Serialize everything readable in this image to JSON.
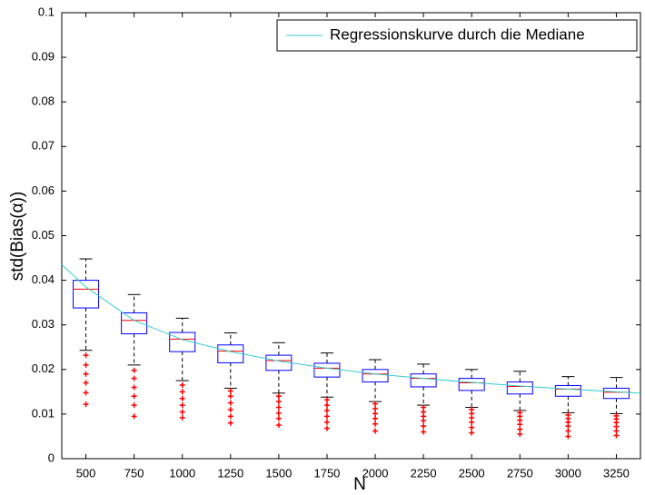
{
  "chart_data": {
    "type": "box",
    "xlabel": "N",
    "ylabel": "std(Bias(α))",
    "xlim": [
      375,
      3375
    ],
    "xticks": [
      500,
      750,
      1000,
      1250,
      1500,
      1750,
      2000,
      2250,
      2500,
      2750,
      3000,
      3250
    ],
    "ylim": [
      0,
      0.1
    ],
    "yticks": [
      0,
      0.01,
      0.02,
      0.03,
      0.04,
      0.05,
      0.06,
      0.07,
      0.08,
      0.09,
      0.1
    ],
    "box_color": "#0000ff",
    "median_color": "#ff0000",
    "outlier_color": "#ff0000",
    "whisker_color": "#000000",
    "legend": "upper right",
    "boxes": [
      {
        "x": 500,
        "whisker_low": 0.0243,
        "q1": 0.0338,
        "median": 0.038,
        "q3": 0.04,
        "whisker_high": 0.0448,
        "outliers": [
          0.0232,
          0.021,
          0.019,
          0.017,
          0.0148,
          0.0122
        ]
      },
      {
        "x": 750,
        "whisker_low": 0.021,
        "q1": 0.028,
        "median": 0.031,
        "q3": 0.0327,
        "whisker_high": 0.0368,
        "outliers": [
          0.0198,
          0.018,
          0.016,
          0.014,
          0.012,
          0.0095
        ]
      },
      {
        "x": 1000,
        "whisker_low": 0.0175,
        "q1": 0.024,
        "median": 0.0268,
        "q3": 0.0283,
        "whisker_high": 0.0315,
        "outliers": [
          0.0165,
          0.015,
          0.0135,
          0.012,
          0.0105,
          0.0092
        ]
      },
      {
        "x": 1250,
        "whisker_low": 0.0158,
        "q1": 0.0215,
        "median": 0.0241,
        "q3": 0.0255,
        "whisker_high": 0.0282,
        "outliers": [
          0.0152,
          0.014,
          0.0125,
          0.011,
          0.0095,
          0.008
        ]
      },
      {
        "x": 1500,
        "whisker_low": 0.0147,
        "q1": 0.0198,
        "median": 0.022,
        "q3": 0.0232,
        "whisker_high": 0.026,
        "outliers": [
          0.014,
          0.0128,
          0.0115,
          0.0102,
          0.009,
          0.0075
        ]
      },
      {
        "x": 1750,
        "whisker_low": 0.0138,
        "q1": 0.0183,
        "median": 0.0203,
        "q3": 0.0214,
        "whisker_high": 0.0237,
        "outliers": [
          0.0132,
          0.012,
          0.0108,
          0.0095,
          0.0082,
          0.0068
        ]
      },
      {
        "x": 2000,
        "whisker_low": 0.0128,
        "q1": 0.0172,
        "median": 0.019,
        "q3": 0.02,
        "whisker_high": 0.0222,
        "outliers": [
          0.0123,
          0.0112,
          0.0101,
          0.009,
          0.0078,
          0.0062
        ]
      },
      {
        "x": 2250,
        "whisker_low": 0.012,
        "q1": 0.0161,
        "median": 0.018,
        "q3": 0.019,
        "whisker_high": 0.0212,
        "outliers": [
          0.0115,
          0.0105,
          0.0095,
          0.0085,
          0.0073,
          0.006
        ]
      },
      {
        "x": 2500,
        "whisker_low": 0.0115,
        "q1": 0.0153,
        "median": 0.017,
        "q3": 0.018,
        "whisker_high": 0.02,
        "outliers": [
          0.011,
          0.0101,
          0.0092,
          0.0082,
          0.007,
          0.0058
        ]
      },
      {
        "x": 2750,
        "whisker_low": 0.0108,
        "q1": 0.0145,
        "median": 0.0162,
        "q3": 0.0172,
        "whisker_high": 0.0196,
        "outliers": [
          0.0103,
          0.0095,
          0.0086,
          0.0077,
          0.0066,
          0.0055
        ]
      },
      {
        "x": 3000,
        "whisker_low": 0.0103,
        "q1": 0.014,
        "median": 0.0156,
        "q3": 0.0164,
        "whisker_high": 0.0184,
        "outliers": [
          0.0098,
          0.009,
          0.0082,
          0.0073,
          0.0062,
          0.005
        ]
      },
      {
        "x": 3250,
        "whisker_low": 0.0101,
        "q1": 0.0135,
        "median": 0.0149,
        "q3": 0.0158,
        "whisker_high": 0.0182,
        "outliers": [
          0.0096,
          0.0089,
          0.0081,
          0.0072,
          0.0062,
          0.0052
        ]
      }
    ],
    "series": [
      {
        "name": "Regressionskurve durch die Mediane",
        "color": "#33cccc",
        "x": [
          375,
          500,
          750,
          1000,
          1250,
          1500,
          1750,
          2000,
          2250,
          2500,
          2750,
          3000,
          3250,
          3375
        ],
        "values": [
          0.0435,
          0.0385,
          0.031,
          0.0267,
          0.024,
          0.0219,
          0.0203,
          0.019,
          0.018,
          0.0171,
          0.0163,
          0.0156,
          0.015,
          0.0147
        ]
      }
    ]
  }
}
